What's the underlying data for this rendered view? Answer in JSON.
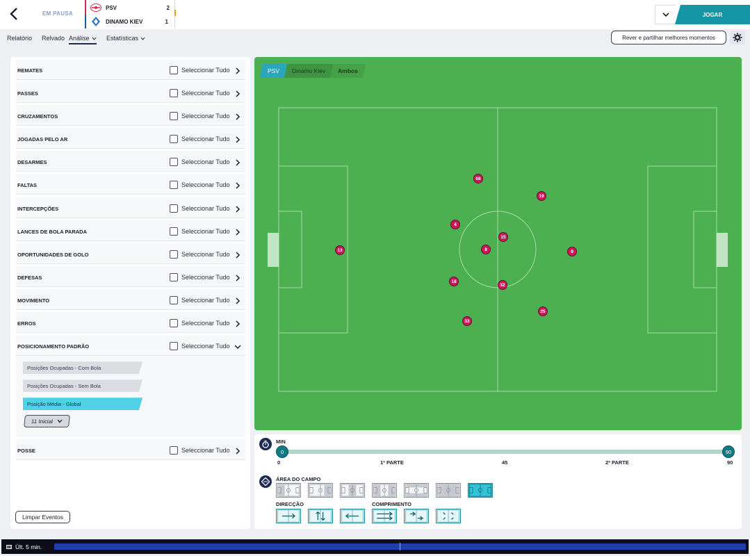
{
  "match": {
    "status": "EM PAUSA",
    "home": {
      "name": "PSV",
      "goals": "2"
    },
    "away": {
      "name": "DINAMO KIEV",
      "goals": "1"
    }
  },
  "actions": {
    "play_label": "JOGAR",
    "share_label": "Rever e partilhar melhores momentos"
  },
  "nav": [
    {
      "label": "Relatório"
    },
    {
      "label": "Relvado"
    },
    {
      "label": "Análise"
    },
    {
      "label": "Estatísticas"
    }
  ],
  "select_all_label": "Seleccionar Tudo",
  "categories": [
    "REMATES",
    "PASSES",
    "CRUZAMENTOS",
    "JOGADAS PELO AR",
    "DESARMES",
    "FALTAS",
    "INTERCEPÇÕES",
    "LANCES DE BOLA PARADA",
    "OPORTUNIDADES DE GOLO",
    "DEFESAS",
    "MOVIMENTO",
    "ERROS",
    "POSICIONAMENTO PADRÃO",
    "POSSE"
  ],
  "positioning_sub": {
    "items": [
      "Posições Ocupadas - Com Bola",
      "Posições Ocupadas - Sem Bola",
      "Posição Média - Global"
    ],
    "selected_index": 2,
    "lineup_label": "11 Inicial"
  },
  "clear_label": "Limpar Eventos",
  "team_tabs": {
    "home": "PSV",
    "away": "Dinamo Kiev",
    "both": "Ambos"
  },
  "players": [
    "68",
    "19",
    "4",
    "15",
    "13",
    "8",
    "9",
    "18",
    "32",
    "25",
    "33"
  ],
  "time_filter": {
    "label": "MIN",
    "start": "0",
    "end": "90",
    "ticks": [
      "0",
      "1ª PARTE",
      "45",
      "2ª PARTE",
      "90"
    ]
  },
  "field_filter": {
    "area_label": "ÁREA DO CAMPO",
    "direction_label": "DIRECÇÃO",
    "length_label": "COMPRIMENTO",
    "selected_area_index": 6
  },
  "bottom": {
    "label": "Últ. 5 min."
  },
  "colors": {
    "accent": "#1596a4",
    "pitch": "#4cb050",
    "player": "#c8195a",
    "selected": "#4fd1e6"
  }
}
